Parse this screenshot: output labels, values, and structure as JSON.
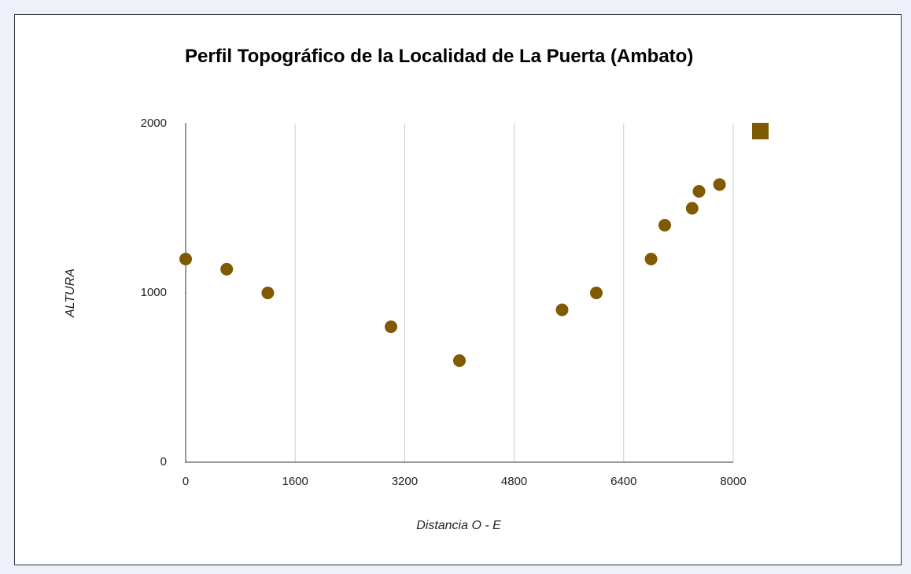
{
  "chart_data": {
    "type": "scatter",
    "title": "Perfil Topográfico de la Localidad de La Puerta (Ambato)",
    "x_label": "Distancia O - E",
    "y_label": "ALTURA",
    "series": [
      {
        "color": "#7f5a00",
        "x": [
          0,
          600,
          1200,
          3000,
          4000,
          5500,
          6000,
          6800,
          7000,
          7400,
          7500,
          7800
        ],
        "values": [
          1200,
          1140,
          1000,
          800,
          600,
          900,
          1000,
          1200,
          1400,
          1500,
          1600,
          1640
        ]
      }
    ],
    "xlim": [
      0,
      8000
    ],
    "xticks": [
      0,
      1600,
      3200,
      4800,
      6400,
      8000
    ],
    "ylim": [
      0,
      2000
    ],
    "yticks": [
      0,
      1000,
      2000
    ],
    "grid": "x"
  }
}
